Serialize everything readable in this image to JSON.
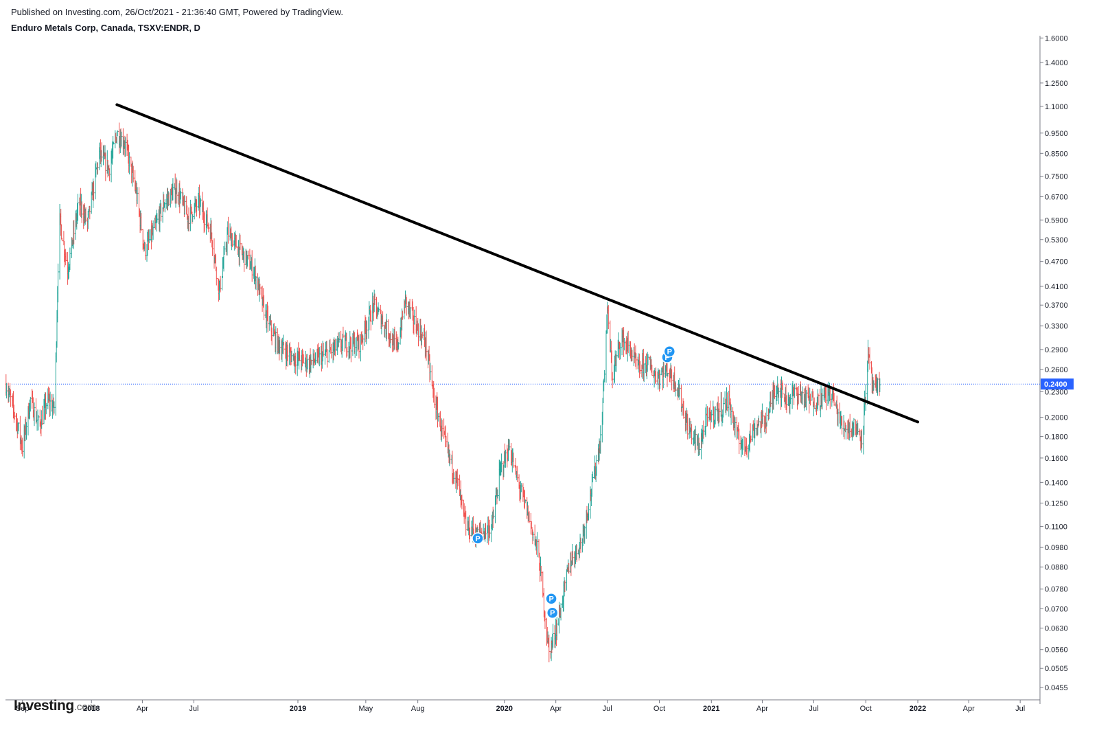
{
  "header": {
    "published": "Published on Investing.com, 26/Oct/2021 - 21:36:40 GMT, Powered by TradingView.",
    "symbol": "Enduro Metals Corp, Canada, TSXV:ENDR, D"
  },
  "logo": {
    "main": "Investing",
    "suffix": ".com"
  },
  "chart_data": {
    "type": "ohlc",
    "yscale": "log",
    "ylim": [
      0.0425,
      1.62
    ],
    "xlim": [
      "2017-08-02",
      "2022-08-05"
    ],
    "colors": {
      "up": "#26a69a",
      "down": "#ef5350",
      "axis": "#787b86",
      "lastprice": "#2962ff",
      "trendline": "#000000",
      "marker": "#2196f3"
    },
    "y_ticks": [
      "1.6000",
      "1.4000",
      "1.2500",
      "1.1000",
      "0.9500",
      "0.8500",
      "0.7500",
      "0.6700",
      "0.5900",
      "0.5300",
      "0.4700",
      "0.4100",
      "0.3700",
      "0.3300",
      "0.2900",
      "0.2600",
      "0.2300",
      "0.2000",
      "0.1800",
      "0.1600",
      "0.1400",
      "0.1250",
      "0.1100",
      "0.0980",
      "0.0880",
      "0.0780",
      "0.0700",
      "0.0630",
      "0.0560",
      "0.0505",
      "0.0455"
    ],
    "x_ticks": [
      {
        "label": "Sep",
        "date": "2017-09-01",
        "bold": false
      },
      {
        "label": "2018",
        "date": "2018-01-01",
        "bold": true
      },
      {
        "label": "Apr",
        "date": "2018-04-01",
        "bold": false
      },
      {
        "label": "Jul",
        "date": "2018-07-01",
        "bold": false
      },
      {
        "label": "2019",
        "date": "2019-01-01",
        "bold": true
      },
      {
        "label": "May",
        "date": "2019-05-01",
        "bold": false
      },
      {
        "label": "Aug",
        "date": "2019-08-01",
        "bold": false
      },
      {
        "label": "2020",
        "date": "2020-01-01",
        "bold": true
      },
      {
        "label": "Apr",
        "date": "2020-04-01",
        "bold": false
      },
      {
        "label": "Jul",
        "date": "2020-07-01",
        "bold": false
      },
      {
        "label": "Oct",
        "date": "2020-10-01",
        "bold": false
      },
      {
        "label": "2021",
        "date": "2021-01-01",
        "bold": true
      },
      {
        "label": "Apr",
        "date": "2021-04-01",
        "bold": false
      },
      {
        "label": "Jul",
        "date": "2021-07-01",
        "bold": false
      },
      {
        "label": "Oct",
        "date": "2021-10-01",
        "bold": false
      },
      {
        "label": "2022",
        "date": "2022-01-01",
        "bold": true
      },
      {
        "label": "Apr",
        "date": "2022-04-01",
        "bold": false
      },
      {
        "label": "Jul",
        "date": "2022-07-01",
        "bold": false
      }
    ],
    "last_price": {
      "value": 0.24,
      "label": "0.2400"
    },
    "trendline": [
      {
        "date": "2018-02-15",
        "price": 1.11
      },
      {
        "date": "2022-01-01",
        "price": 0.195
      }
    ],
    "markers": [
      {
        "date": "2019-11-15",
        "price": 0.103,
        "label": "P"
      },
      {
        "date": "2020-03-24",
        "price": 0.074,
        "label": "P"
      },
      {
        "date": "2020-03-26",
        "price": 0.0685,
        "label": "P"
      },
      {
        "date": "2020-10-15",
        "price": 0.278,
        "label": "P"
      },
      {
        "date": "2020-10-19",
        "price": 0.287,
        "label": "P"
      }
    ],
    "price_path": [
      [
        "2017-08-03",
        0.24
      ],
      [
        "2017-08-20",
        0.2
      ],
      [
        "2017-09-01",
        0.17
      ],
      [
        "2017-09-15",
        0.22
      ],
      [
        "2017-10-01",
        0.19
      ],
      [
        "2017-10-15",
        0.22
      ],
      [
        "2017-10-28",
        0.21
      ],
      [
        "2017-11-05",
        0.6
      ],
      [
        "2017-11-20",
        0.45
      ],
      [
        "2017-12-10",
        0.65
      ],
      [
        "2017-12-25",
        0.58
      ],
      [
        "2018-01-15",
        0.85
      ],
      [
        "2018-02-01",
        0.78
      ],
      [
        "2018-02-15",
        0.95
      ],
      [
        "2018-03-01",
        0.9
      ],
      [
        "2018-03-20",
        0.7
      ],
      [
        "2018-04-05",
        0.5
      ],
      [
        "2018-04-20",
        0.55
      ],
      [
        "2018-05-10",
        0.65
      ],
      [
        "2018-06-01",
        0.7
      ],
      [
        "2018-06-20",
        0.6
      ],
      [
        "2018-07-10",
        0.65
      ],
      [
        "2018-08-01",
        0.55
      ],
      [
        "2018-08-15",
        0.4
      ],
      [
        "2018-08-30",
        0.55
      ],
      [
        "2018-09-20",
        0.5
      ],
      [
        "2018-10-15",
        0.45
      ],
      [
        "2018-11-05",
        0.35
      ],
      [
        "2018-11-25",
        0.3
      ],
      [
        "2018-12-20",
        0.28
      ],
      [
        "2019-01-20",
        0.27
      ],
      [
        "2019-02-15",
        0.28
      ],
      [
        "2019-03-20",
        0.3
      ],
      [
        "2019-04-20",
        0.3
      ],
      [
        "2019-05-15",
        0.37
      ],
      [
        "2019-06-10",
        0.32
      ],
      [
        "2019-06-25",
        0.29
      ],
      [
        "2019-07-10",
        0.38
      ],
      [
        "2019-07-25",
        0.34
      ],
      [
        "2019-08-15",
        0.3
      ],
      [
        "2019-08-30",
        0.22
      ],
      [
        "2019-09-20",
        0.17
      ],
      [
        "2019-10-10",
        0.14
      ],
      [
        "2019-10-25",
        0.11
      ],
      [
        "2019-11-15",
        0.105
      ],
      [
        "2019-12-10",
        0.11
      ],
      [
        "2019-12-25",
        0.15
      ],
      [
        "2020-01-10",
        0.17
      ],
      [
        "2020-01-25",
        0.14
      ],
      [
        "2020-02-10",
        0.12
      ],
      [
        "2020-03-01",
        0.095
      ],
      [
        "2020-03-20",
        0.055
      ],
      [
        "2020-04-05",
        0.065
      ],
      [
        "2020-04-25",
        0.09
      ],
      [
        "2020-05-15",
        0.1
      ],
      [
        "2020-06-01",
        0.13
      ],
      [
        "2020-06-20",
        0.18
      ],
      [
        "2020-07-01",
        0.36
      ],
      [
        "2020-07-10",
        0.25
      ],
      [
        "2020-07-25",
        0.31
      ],
      [
        "2020-08-10",
        0.29
      ],
      [
        "2020-08-25",
        0.26
      ],
      [
        "2020-09-10",
        0.27
      ],
      [
        "2020-09-25",
        0.25
      ],
      [
        "2020-10-15",
        0.26
      ],
      [
        "2020-11-01",
        0.24
      ],
      [
        "2020-11-20",
        0.19
      ],
      [
        "2020-12-10",
        0.17
      ],
      [
        "2020-12-25",
        0.2
      ],
      [
        "2021-01-20",
        0.21
      ],
      [
        "2021-02-01",
        0.22
      ],
      [
        "2021-02-15",
        0.18
      ],
      [
        "2021-03-01",
        0.17
      ],
      [
        "2021-03-20",
        0.19
      ],
      [
        "2021-04-10",
        0.2
      ],
      [
        "2021-04-25",
        0.24
      ],
      [
        "2021-05-15",
        0.22
      ],
      [
        "2021-06-01",
        0.23
      ],
      [
        "2021-06-20",
        0.22
      ],
      [
        "2021-07-10",
        0.22
      ],
      [
        "2021-08-01",
        0.23
      ],
      [
        "2021-08-20",
        0.19
      ],
      [
        "2021-09-10",
        0.19
      ],
      [
        "2021-09-25",
        0.18
      ],
      [
        "2021-10-05",
        0.28
      ],
      [
        "2021-10-15",
        0.23
      ],
      [
        "2021-10-26",
        0.24
      ]
    ]
  }
}
